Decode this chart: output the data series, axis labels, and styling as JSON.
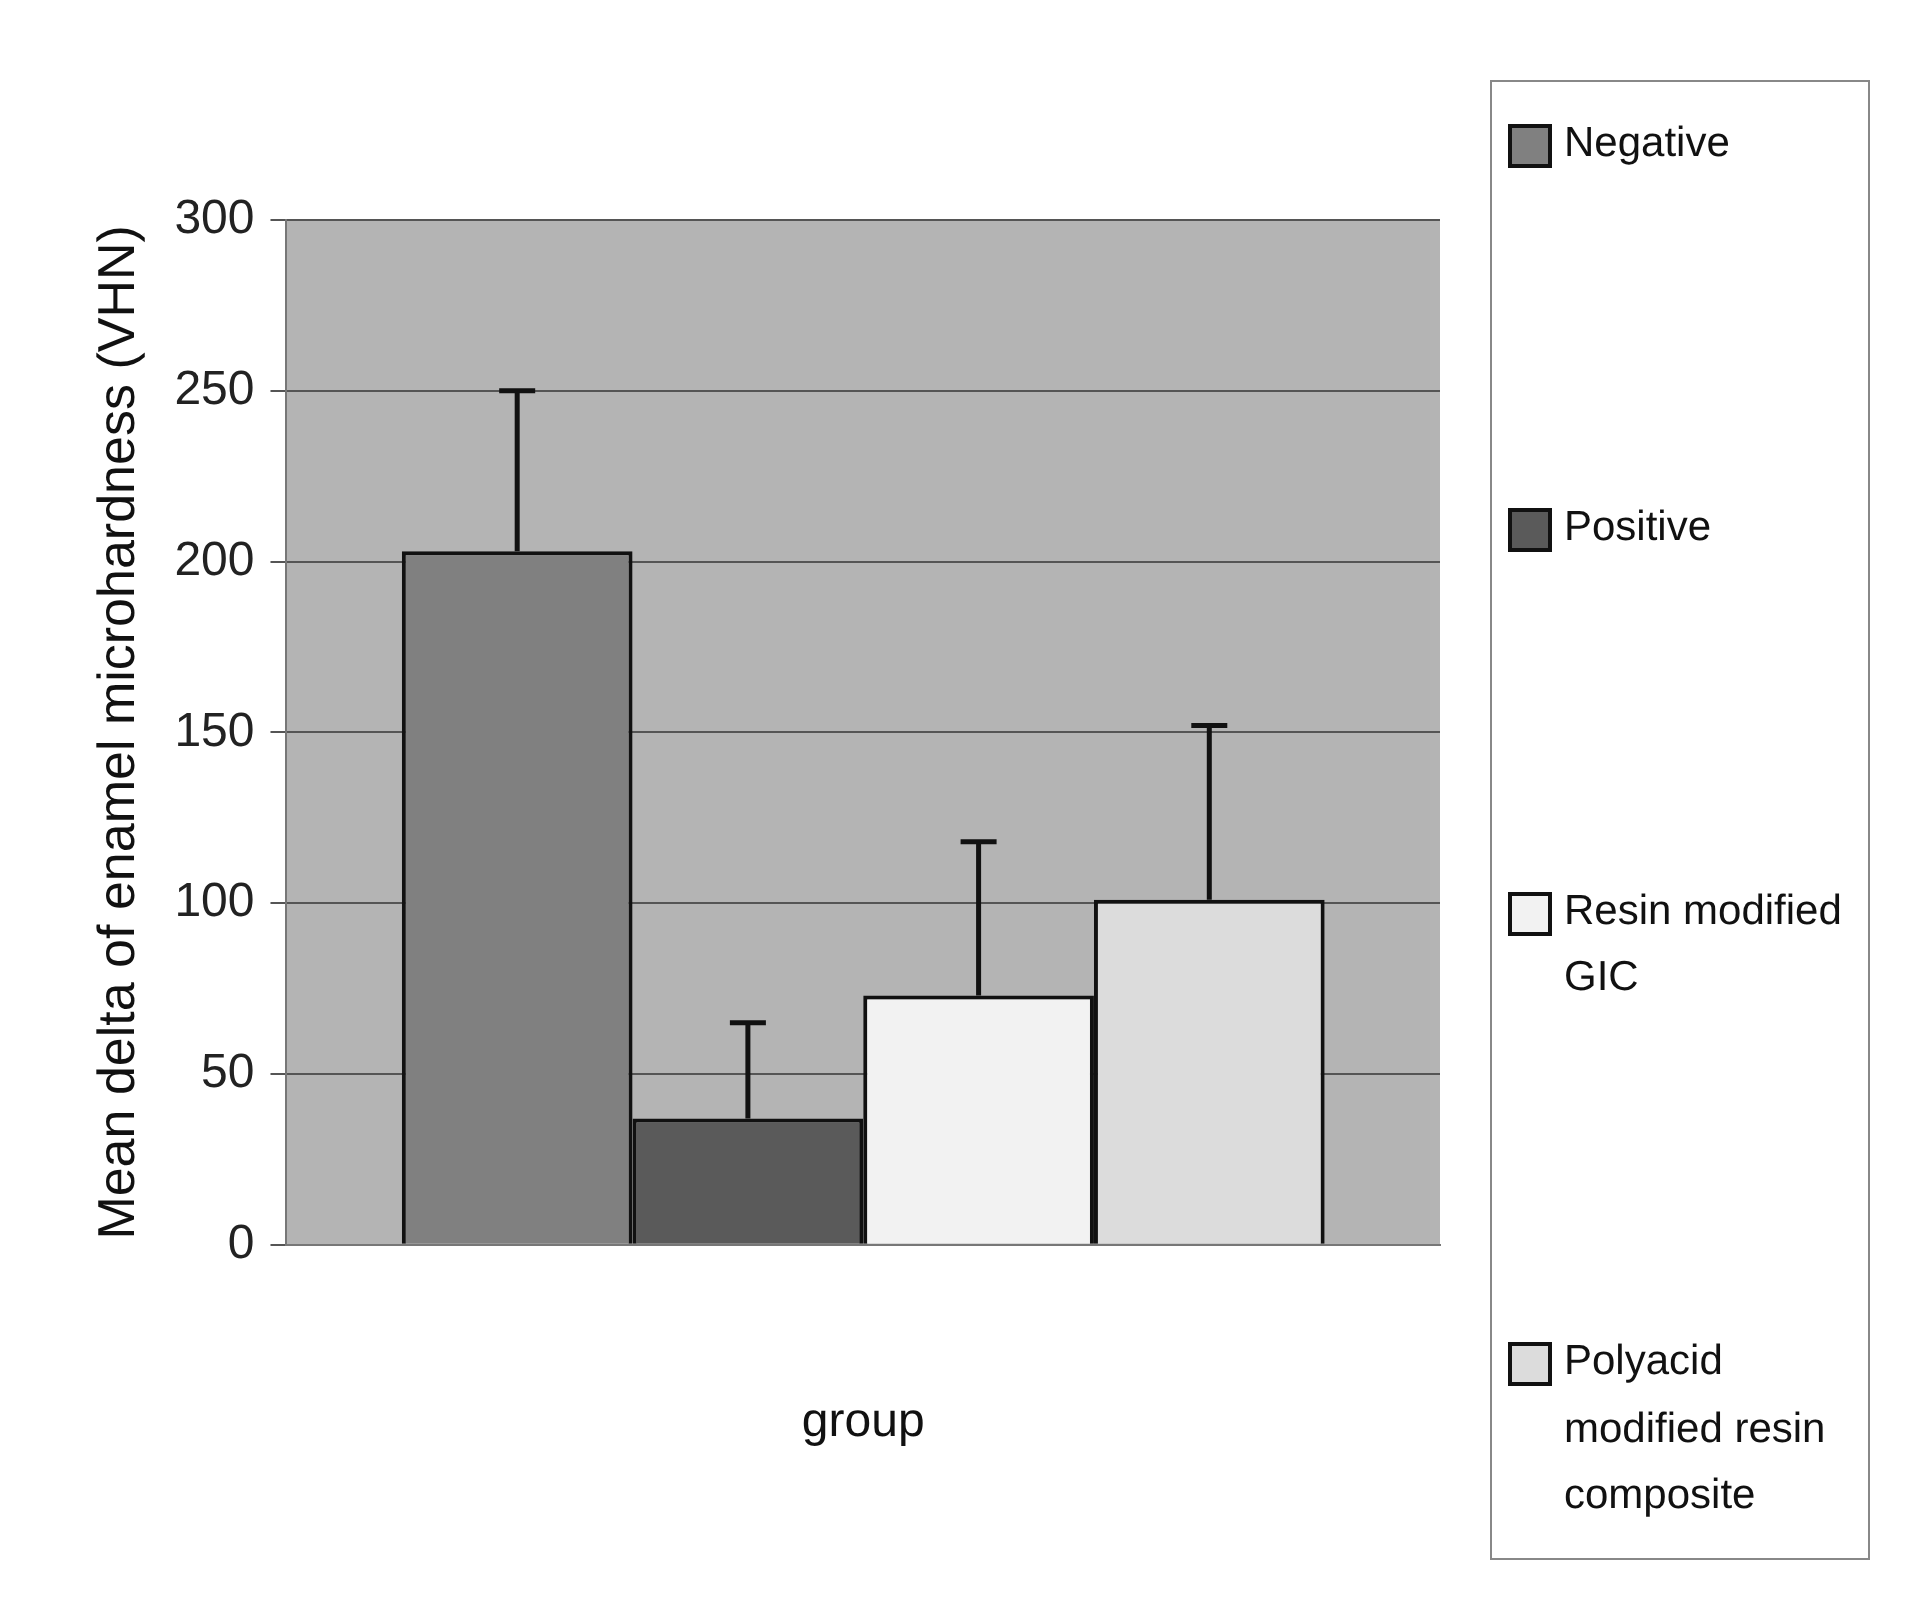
{
  "chart_data": {
    "type": "bar",
    "xlabel": "group",
    "ylabel": "Mean delta of enamel microhardness (VHN)",
    "categories": [
      null
    ],
    "series": [
      {
        "name": "Negative",
        "color": "#808080",
        "values": [
          203
        ],
        "errors": [
          [
            203,
            250
          ]
        ]
      },
      {
        "name": "Positive",
        "color": "#5a5a5a",
        "values": [
          37
        ],
        "errors": [
          [
            37,
            65
          ]
        ]
      },
      {
        "name": "Resin modified GIC",
        "color": "#f2f2f2",
        "values": [
          73
        ],
        "errors": [
          [
            73,
            118
          ]
        ]
      },
      {
        "name": "Polyacid modified resin composite",
        "color": "#dcdcdc",
        "values": [
          101
        ],
        "errors": [
          [
            101,
            152
          ]
        ]
      }
    ],
    "ylim": [
      0,
      300
    ],
    "yticks": [
      0,
      50,
      100,
      150,
      200,
      250,
      300
    ],
    "grid": "y",
    "legend": "right"
  }
}
